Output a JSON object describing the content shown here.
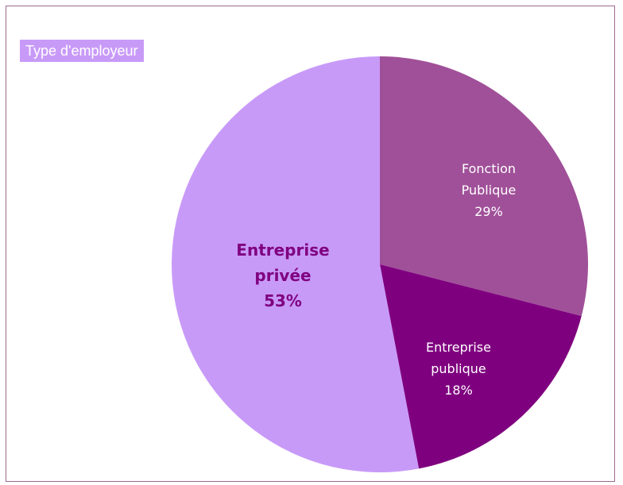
{
  "chart_data": {
    "type": "pie",
    "title": "Type d'employeur",
    "slices": [
      {
        "name_lines": [
          "Fonction",
          "Publique"
        ],
        "pct_label": "29%",
        "value": 29,
        "color": "#a05099",
        "label_color": "#ffffff"
      },
      {
        "name_lines": [
          "Entreprise",
          "publique"
        ],
        "pct_label": "18%",
        "value": 18,
        "color": "#7f007f",
        "label_color": "#ffffff"
      },
      {
        "name_lines": [
          "Entreprise",
          "privée"
        ],
        "pct_label": "53%",
        "value": 53,
        "color": "#c89af8",
        "label_color": "#7f007f"
      }
    ],
    "legend": "none"
  }
}
